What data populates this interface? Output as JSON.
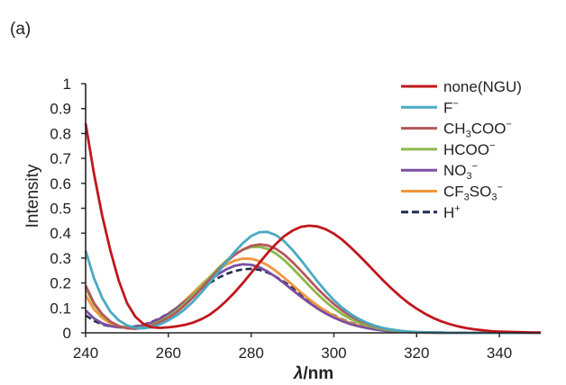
{
  "chart_data": {
    "type": "line",
    "panel_label": "(a)",
    "xlabel": "λ/nm",
    "xlabel_parts": {
      "italic": "λ",
      "rest": "/nm"
    },
    "ylabel": "Intensity",
    "xlim": [
      240,
      350
    ],
    "ylim": [
      0,
      1
    ],
    "xticks": [
      240,
      260,
      280,
      300,
      320,
      340
    ],
    "yticks": [
      0,
      0.1,
      0.2,
      0.3,
      0.4,
      0.5,
      0.6,
      0.7,
      0.8,
      0.9,
      1
    ],
    "ytick_labels": [
      "0",
      "0.1",
      "0.2",
      "0.3",
      "0.4",
      "0.5",
      "0.6",
      "0.7",
      "0.8",
      "0.9",
      "1"
    ],
    "xtick_labels": [
      "240",
      "260",
      "280",
      "300",
      "320",
      "340"
    ],
    "grid": false,
    "legend_position": "top-right",
    "x": [
      240,
      242,
      244,
      246,
      248,
      250,
      252,
      254,
      256,
      258,
      260,
      262,
      264,
      266,
      268,
      270,
      272,
      274,
      276,
      278,
      280,
      282,
      284,
      286,
      288,
      290,
      292,
      294,
      296,
      298,
      300,
      302,
      304,
      306,
      308,
      310,
      312,
      314,
      316,
      318,
      320,
      322,
      324,
      326,
      328,
      330,
      332,
      334,
      336,
      338,
      340,
      342,
      344,
      346,
      348,
      350
    ],
    "series": [
      {
        "name": "none(NGU)",
        "legend": {
          "base": "none(NGU)",
          "sub": "",
          "mid": "",
          "sub2": "",
          "sup": ""
        },
        "color": "#c0171c",
        "dashed": false,
        "values": [
          0.84,
          0.64,
          0.47,
          0.33,
          0.21,
          0.12,
          0.065,
          0.035,
          0.022,
          0.02,
          0.022,
          0.026,
          0.032,
          0.041,
          0.055,
          0.073,
          0.098,
          0.128,
          0.162,
          0.2,
          0.24,
          0.281,
          0.321,
          0.357,
          0.388,
          0.41,
          0.425,
          0.43,
          0.427,
          0.416,
          0.398,
          0.374,
          0.344,
          0.312,
          0.278,
          0.243,
          0.209,
          0.177,
          0.147,
          0.12,
          0.097,
          0.077,
          0.06,
          0.046,
          0.035,
          0.026,
          0.019,
          0.014,
          0.01,
          0.007,
          0.005,
          0.004,
          0.003,
          0.002,
          0.001,
          0.001
        ]
      },
      {
        "name": "F⁻",
        "legend": {
          "base": "F",
          "sub": "",
          "mid": "",
          "sub2": "",
          "sup": "−"
        },
        "color": "#4aaac2",
        "dashed": false,
        "values": [
          0.33,
          0.22,
          0.14,
          0.085,
          0.05,
          0.03,
          0.02,
          0.018,
          0.023,
          0.034,
          0.05,
          0.07,
          0.095,
          0.126,
          0.162,
          0.201,
          0.243,
          0.285,
          0.325,
          0.36,
          0.388,
          0.404,
          0.405,
          0.392,
          0.367,
          0.333,
          0.293,
          0.25,
          0.207,
          0.167,
          0.131,
          0.101,
          0.076,
          0.056,
          0.04,
          0.028,
          0.019,
          0.013,
          0.008,
          0.005,
          0.003,
          0.002,
          0.001,
          0.001,
          0,
          0,
          0,
          0,
          0,
          0,
          0,
          0,
          0,
          0,
          0,
          0
        ]
      },
      {
        "name": "CH₃COO⁻",
        "legend": {
          "base": "CH",
          "sub": "3",
          "mid": "COO",
          "sub2": "",
          "sup": "−"
        },
        "color": "#b5585a",
        "dashed": false,
        "values": [
          0.19,
          0.12,
          0.075,
          0.045,
          0.027,
          0.018,
          0.016,
          0.02,
          0.028,
          0.042,
          0.06,
          0.083,
          0.111,
          0.143,
          0.178,
          0.215,
          0.251,
          0.285,
          0.313,
          0.334,
          0.349,
          0.355,
          0.351,
          0.337,
          0.314,
          0.284,
          0.25,
          0.214,
          0.178,
          0.145,
          0.115,
          0.089,
          0.068,
          0.05,
          0.037,
          0.026,
          0.018,
          0.012,
          0.008,
          0.005,
          0.003,
          0.002,
          0.001,
          0.001,
          0,
          0,
          0,
          0,
          0,
          0,
          0,
          0,
          0,
          0,
          0,
          0
        ]
      },
      {
        "name": "HCOO⁻",
        "legend": {
          "base": "HCOO",
          "sub": "",
          "mid": "",
          "sub2": "",
          "sup": "−"
        },
        "color": "#8db64a",
        "dashed": false,
        "values": [
          0.18,
          0.115,
          0.072,
          0.044,
          0.028,
          0.02,
          0.018,
          0.022,
          0.031,
          0.046,
          0.066,
          0.09,
          0.119,
          0.152,
          0.187,
          0.223,
          0.258,
          0.29,
          0.316,
          0.334,
          0.344,
          0.345,
          0.337,
          0.318,
          0.292,
          0.26,
          0.225,
          0.19,
          0.156,
          0.125,
          0.098,
          0.075,
          0.056,
          0.041,
          0.03,
          0.021,
          0.014,
          0.009,
          0.006,
          0.004,
          0.002,
          0.001,
          0.001,
          0,
          0,
          0,
          0,
          0,
          0,
          0,
          0,
          0,
          0,
          0,
          0,
          0
        ]
      },
      {
        "name": "NO₃⁻",
        "legend": {
          "base": "NO",
          "sub": "3",
          "mid": "",
          "sub2": "",
          "sup": "−"
        },
        "color": "#7b4fa0",
        "dashed": false,
        "values": [
          0.09,
          0.058,
          0.038,
          0.027,
          0.022,
          0.021,
          0.024,
          0.031,
          0.042,
          0.057,
          0.076,
          0.099,
          0.125,
          0.153,
          0.182,
          0.21,
          0.235,
          0.255,
          0.269,
          0.275,
          0.273,
          0.263,
          0.246,
          0.224,
          0.199,
          0.172,
          0.146,
          0.121,
          0.098,
          0.078,
          0.061,
          0.047,
          0.035,
          0.026,
          0.019,
          0.013,
          0.009,
          0.006,
          0.004,
          0.003,
          0.002,
          0.001,
          0.001,
          0,
          0,
          0,
          0,
          0,
          0,
          0,
          0,
          0,
          0,
          0,
          0,
          0
        ]
      },
      {
        "name": "CF₃SO₃⁻",
        "legend": {
          "base": "CF",
          "sub": "3",
          "mid": "SO",
          "sub2": "3",
          "sup": "−"
        },
        "color": "#f0963c",
        "dashed": false,
        "values": [
          0.15,
          0.095,
          0.06,
          0.038,
          0.026,
          0.021,
          0.022,
          0.028,
          0.039,
          0.055,
          0.076,
          0.101,
          0.13,
          0.161,
          0.193,
          0.224,
          0.252,
          0.274,
          0.29,
          0.298,
          0.297,
          0.288,
          0.271,
          0.248,
          0.221,
          0.192,
          0.163,
          0.135,
          0.11,
          0.087,
          0.068,
          0.052,
          0.039,
          0.029,
          0.021,
          0.015,
          0.01,
          0.007,
          0.005,
          0.003,
          0.002,
          0.001,
          0.001,
          0,
          0,
          0,
          0,
          0,
          0,
          0,
          0,
          0,
          0,
          0,
          0,
          0
        ]
      },
      {
        "name": "H⁺",
        "legend": {
          "base": "H",
          "sub": "",
          "mid": "",
          "sub2": "",
          "sup": "+"
        },
        "color": "#1f2d4f",
        "dashed": true,
        "values": [
          0.07,
          0.048,
          0.034,
          0.026,
          0.023,
          0.023,
          0.026,
          0.033,
          0.044,
          0.059,
          0.078,
          0.1,
          0.125,
          0.151,
          0.177,
          0.2,
          0.22,
          0.236,
          0.248,
          0.255,
          0.257,
          0.253,
          0.242,
          0.225,
          0.204,
          0.181,
          0.156,
          0.132,
          0.109,
          0.088,
          0.07,
          0.054,
          0.041,
          0.031,
          0.023,
          0.016,
          0.011,
          0.008,
          0.005,
          0.003,
          0.002,
          0.001,
          0.001,
          0,
          0,
          0,
          0,
          0,
          0,
          0,
          0,
          0,
          0,
          0,
          0,
          0
        ]
      }
    ]
  }
}
